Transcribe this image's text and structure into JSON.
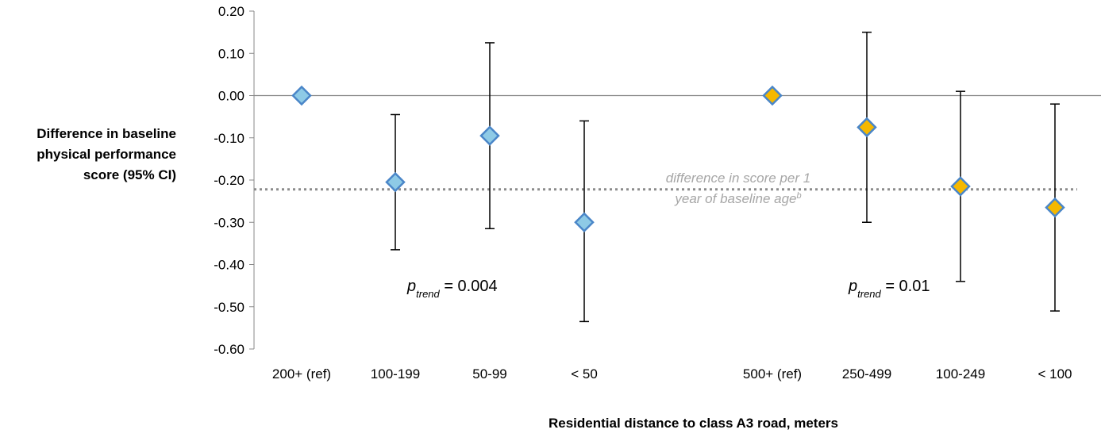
{
  "chart_data": {
    "type": "scatter",
    "ylabel_lines": [
      "Difference in baseline",
      "physical performance",
      "score (95% CI)"
    ],
    "xlabel": "Residential distance to class A3 road, meters",
    "ylim": [
      -0.6,
      0.2
    ],
    "yticks": [
      "0.20",
      "0.10",
      "0.00",
      "-0.10",
      "-0.20",
      "-0.30",
      "-0.40",
      "-0.50",
      "-0.60"
    ],
    "ytick_values": [
      0.2,
      0.1,
      0.0,
      -0.1,
      -0.2,
      -0.3,
      -0.4,
      -0.5,
      -0.6
    ],
    "categories": [
      "200+ (ref)",
      "100-199",
      "50-99",
      "< 50",
      "500+ (ref)",
      "250-499",
      "100-249",
      "< 100"
    ],
    "series": [
      {
        "color": "#8ecae6",
        "stroke": "#4a86c8",
        "categories": [
          "200+ (ref)",
          "100-199",
          "50-99",
          "< 50"
        ],
        "values": [
          0.0,
          -0.205,
          -0.095,
          -0.3
        ],
        "ci_low": [
          null,
          -0.365,
          -0.315,
          -0.535
        ],
        "ci_high": [
          null,
          -0.045,
          0.125,
          -0.06
        ]
      },
      {
        "color": "#f5b800",
        "stroke": "#4a86c8",
        "categories": [
          "500+ (ref)",
          "250-499",
          "100-249",
          "< 100"
        ],
        "values": [
          0.0,
          -0.075,
          -0.215,
          -0.265
        ],
        "ci_low": [
          null,
          -0.3,
          -0.44,
          -0.51
        ],
        "ci_high": [
          null,
          0.15,
          0.01,
          -0.02
        ]
      }
    ],
    "reference_line": {
      "value": -0.222,
      "label_line1": "difference in score per 1",
      "label_line2": "year of baseline age",
      "label_sup": "b",
      "color": "#8c8c8c"
    },
    "annotations": [
      {
        "p": "p",
        "sub": "trend",
        "text": " = 0.004"
      },
      {
        "p": "p",
        "sub": "trend",
        "text": " = 0.01"
      }
    ]
  }
}
